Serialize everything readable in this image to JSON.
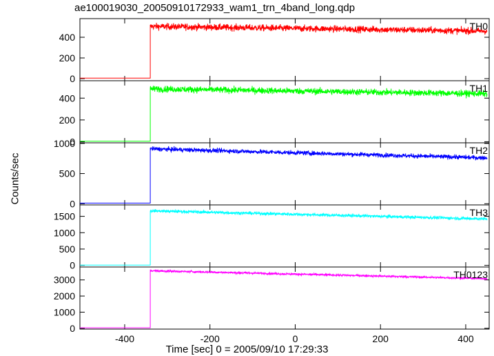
{
  "chart_data": {
    "type": "line",
    "title": "ae100019030_20050910172933_wam1_trn_4band_long.qdp",
    "xlabel": "Time [sec] 0 = 2005/09/10 17:29:33",
    "ylabel": "Counts/sec",
    "xlim": [
      -505,
      455
    ],
    "xticks": [
      -400,
      -200,
      0,
      200,
      400
    ],
    "grid": false,
    "step_time": -340,
    "panels": [
      {
        "name": "TH0",
        "color": "#ff0000",
        "ylim": [
          -20,
          580
        ],
        "yticks": [
          0,
          200,
          400
        ],
        "pre_level": 5,
        "post_start": 505,
        "post_end": 460,
        "noise": 30,
        "x": [
          -505,
          -340,
          -339,
          -300,
          -200,
          -100,
          0,
          100,
          200,
          300,
          400,
          450
        ],
        "y": [
          5,
          5,
          505,
          505,
          495,
          490,
          485,
          480,
          475,
          470,
          465,
          460
        ]
      },
      {
        "name": "TH1",
        "color": "#00ff00",
        "ylim": [
          -10,
          560
        ],
        "yticks": [
          0,
          200,
          400
        ],
        "pre_level": 5,
        "post_start": 485,
        "post_end": 440,
        "noise": 28,
        "x": [
          -505,
          -340,
          -339,
          -300,
          -200,
          -100,
          0,
          100,
          200,
          300,
          400,
          450
        ],
        "y": [
          5,
          5,
          485,
          485,
          475,
          470,
          465,
          460,
          455,
          450,
          445,
          440
        ]
      },
      {
        "name": "TH2",
        "color": "#0000ff",
        "ylim": [
          -20,
          1010
        ],
        "yticks": [
          0,
          500,
          1000
        ],
        "pre_level": 10,
        "post_start": 910,
        "post_end": 760,
        "noise": 35,
        "x": [
          -505,
          -340,
          -339,
          -300,
          -200,
          -100,
          0,
          100,
          200,
          300,
          400,
          450
        ],
        "y": [
          10,
          10,
          910,
          900,
          880,
          860,
          840,
          820,
          800,
          785,
          770,
          760
        ]
      },
      {
        "name": "TH3",
        "color": "#00ffff",
        "ylim": [
          -50,
          1850
        ],
        "yticks": [
          0,
          500,
          1000,
          1500
        ],
        "pre_level": 10,
        "post_start": 1670,
        "post_end": 1420,
        "noise": 45,
        "x": [
          -505,
          -340,
          -339,
          -300,
          -200,
          -100,
          0,
          100,
          200,
          300,
          400,
          450
        ],
        "y": [
          10,
          10,
          1670,
          1660,
          1620,
          1580,
          1540,
          1510,
          1480,
          1455,
          1430,
          1420
        ]
      },
      {
        "name": "TH0123",
        "color": "#ff00ff",
        "ylim": [
          -50,
          3800
        ],
        "yticks": [
          0,
          1000,
          2000,
          3000
        ],
        "pre_level": 30,
        "post_start": 3570,
        "post_end": 3080,
        "noise": 60,
        "x": [
          -505,
          -340,
          -339,
          -300,
          -200,
          -100,
          0,
          100,
          200,
          300,
          400,
          450
        ],
        "y": [
          30,
          30,
          3570,
          3550,
          3480,
          3400,
          3330,
          3260,
          3200,
          3150,
          3100,
          3080
        ]
      }
    ]
  }
}
